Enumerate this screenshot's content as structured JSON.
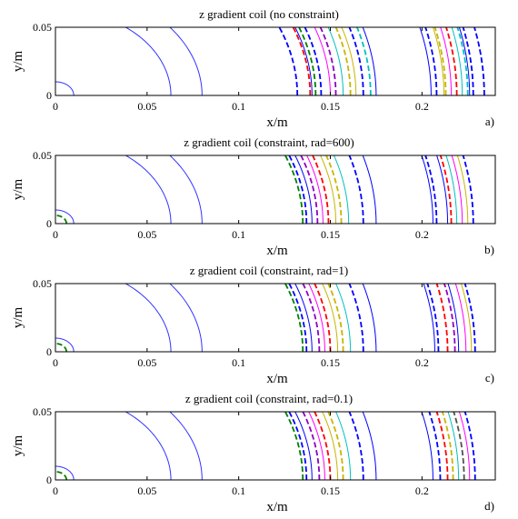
{
  "chart_data": [
    {
      "type": "line",
      "panel_label": "a)",
      "title": "z gradient coil (no constraint)",
      "xlabel": "x/m",
      "ylabel": "y/m",
      "xlim": [
        0,
        0.24
      ],
      "ylim": [
        0,
        0.05
      ],
      "xticks": [
        "0",
        "0.05",
        "0.1",
        "0.15",
        "0.2"
      ],
      "yticks": [
        "0",
        "0.05"
      ],
      "grid": false,
      "series": [
        {
          "style": "solid",
          "color": "#3333ff",
          "radii": [
            0.01,
            0.063,
            0.08
          ]
        },
        {
          "style": "solid",
          "color": "#0000ff",
          "radii": [
            0.14,
            0.175,
            0.205,
            0.226
          ]
        },
        {
          "style": "solid",
          "color": "#ff00ff",
          "radii": [
            0.15,
            0.216
          ]
        },
        {
          "style": "solid",
          "color": "#00c0c0",
          "radii": [
            0.157,
            0.222
          ]
        },
        {
          "style": "solid",
          "color": "#c8b400",
          "radii": [
            0.164,
            0.212
          ]
        },
        {
          "style": "dashed",
          "color": "#0000ff",
          "radii": [
            0.132,
            0.145,
            0.168,
            0.208,
            0.228,
            0.234
          ]
        },
        {
          "style": "dashed",
          "color": "#ff0000",
          "radii": [
            0.139,
            0.219
          ]
        },
        {
          "style": "dashed",
          "color": "#9000c0",
          "radii": [
            0.153
          ]
        },
        {
          "style": "dashed",
          "color": "#00c0c0",
          "radii": [
            0.172,
            0.225
          ]
        },
        {
          "style": "dashed",
          "color": "#c8b400",
          "radii": [
            0.161,
            0.213
          ]
        },
        {
          "style": "dashed",
          "color": "#008000",
          "radii": [
            0.142
          ]
        }
      ]
    },
    {
      "type": "line",
      "panel_label": "b)",
      "title": "z gradient coil (constraint, rad=600)",
      "xlabel": "x/m",
      "ylabel": "y/m",
      "xlim": [
        0,
        0.24
      ],
      "ylim": [
        0,
        0.05
      ],
      "xticks": [
        "0",
        "0.05",
        "0.1",
        "0.15",
        "0.2"
      ],
      "yticks": [
        "0",
        "0.05"
      ],
      "grid": false,
      "series": [
        {
          "style": "solid",
          "color": "#3333ff",
          "radii": [
            0.01,
            0.063,
            0.08
          ]
        },
        {
          "style": "solid",
          "color": "#0000ff",
          "radii": [
            0.14,
            0.175,
            0.206,
            0.214
          ]
        },
        {
          "style": "solid",
          "color": "#ff00ff",
          "radii": [
            0.146,
            0.222
          ]
        },
        {
          "style": "solid",
          "color": "#00c0c0",
          "radii": [
            0.16,
            0.219
          ]
        },
        {
          "style": "solid",
          "color": "#c8b400",
          "radii": [
            0.153,
            0.225
          ]
        },
        {
          "style": "dashed",
          "color": "#0000ff",
          "radii": [
            0.137,
            0.168,
            0.208,
            0.228
          ]
        },
        {
          "style": "dashed",
          "color": "#ff0000",
          "radii": [
            0.149,
            0.216
          ]
        },
        {
          "style": "dashed",
          "color": "#008000",
          "radii": [
            0.006,
            0.135
          ]
        },
        {
          "style": "dashed",
          "color": "#c8b400",
          "radii": [
            0.156
          ]
        },
        {
          "style": "dashed",
          "color": "#9000c0",
          "radii": [
            0.143
          ]
        }
      ]
    },
    {
      "type": "line",
      "panel_label": "c)",
      "title": "z gradient coil (constraint, rad=1)",
      "xlabel": "x/m",
      "ylabel": "y/m",
      "xlim": [
        0,
        0.24
      ],
      "ylim": [
        0,
        0.05
      ],
      "xticks": [
        "0",
        "0.05",
        "0.1",
        "0.15",
        "0.2"
      ],
      "yticks": [
        "0",
        "0.05"
      ],
      "grid": false,
      "series": [
        {
          "style": "solid",
          "color": "#3333ff",
          "radii": [
            0.01,
            0.063,
            0.08
          ]
        },
        {
          "style": "solid",
          "color": "#0000ff",
          "radii": [
            0.14,
            0.175,
            0.207,
            0.22
          ]
        },
        {
          "style": "solid",
          "color": "#ff00ff",
          "radii": [
            0.147,
            0.224
          ]
        },
        {
          "style": "solid",
          "color": "#00c0c0",
          "radii": [
            0.161
          ]
        },
        {
          "style": "solid",
          "color": "#c8b400",
          "radii": [
            0.154,
            0.227
          ]
        },
        {
          "style": "dashed",
          "color": "#0000ff",
          "radii": [
            0.137,
            0.168,
            0.209,
            0.229
          ]
        },
        {
          "style": "dashed",
          "color": "#ff0000",
          "radii": [
            0.15,
            0.214
          ]
        },
        {
          "style": "dashed",
          "color": "#008000",
          "radii": [
            0.006,
            0.135
          ]
        },
        {
          "style": "dashed",
          "color": "#c8b400",
          "radii": [
            0.157
          ]
        },
        {
          "style": "dashed",
          "color": "#9000c0",
          "radii": [
            0.144,
            0.218
          ]
        }
      ]
    },
    {
      "type": "line",
      "panel_label": "d)",
      "title": "z gradient coil (constraint, rad=0.1)",
      "xlabel": "x/m",
      "ylabel": "y/m",
      "xlim": [
        0,
        0.24
      ],
      "ylim": [
        0,
        0.05
      ],
      "xticks": [
        "0",
        "0.05",
        "0.1",
        "0.15",
        "0.2"
      ],
      "yticks": [
        "0",
        "0.05"
      ],
      "grid": false,
      "series": [
        {
          "style": "solid",
          "color": "#3333ff",
          "radii": [
            0.01,
            0.063,
            0.08
          ]
        },
        {
          "style": "solid",
          "color": "#0000ff",
          "radii": [
            0.14,
            0.175,
            0.206
          ]
        },
        {
          "style": "solid",
          "color": "#ff00ff",
          "radii": [
            0.147,
            0.226
          ]
        },
        {
          "style": "solid",
          "color": "#00c0c0",
          "radii": [
            0.161,
            0.22
          ]
        },
        {
          "style": "solid",
          "color": "#c8b400",
          "radii": [
            0.154
          ]
        },
        {
          "style": "dashed",
          "color": "#0000ff",
          "radii": [
            0.137,
            0.168,
            0.21,
            0.229
          ]
        },
        {
          "style": "dashed",
          "color": "#ff0000",
          "radii": [
            0.15,
            0.214
          ]
        },
        {
          "style": "dashed",
          "color": "#008000",
          "radii": [
            0.006,
            0.135
          ]
        },
        {
          "style": "dashed",
          "color": "#c8b400",
          "radii": [
            0.157,
            0.217
          ]
        },
        {
          "style": "dashed",
          "color": "#9000c0",
          "radii": [
            0.144
          ]
        },
        {
          "style": "dashed",
          "color": "#505050",
          "radii": [
            0.223
          ]
        }
      ]
    }
  ]
}
